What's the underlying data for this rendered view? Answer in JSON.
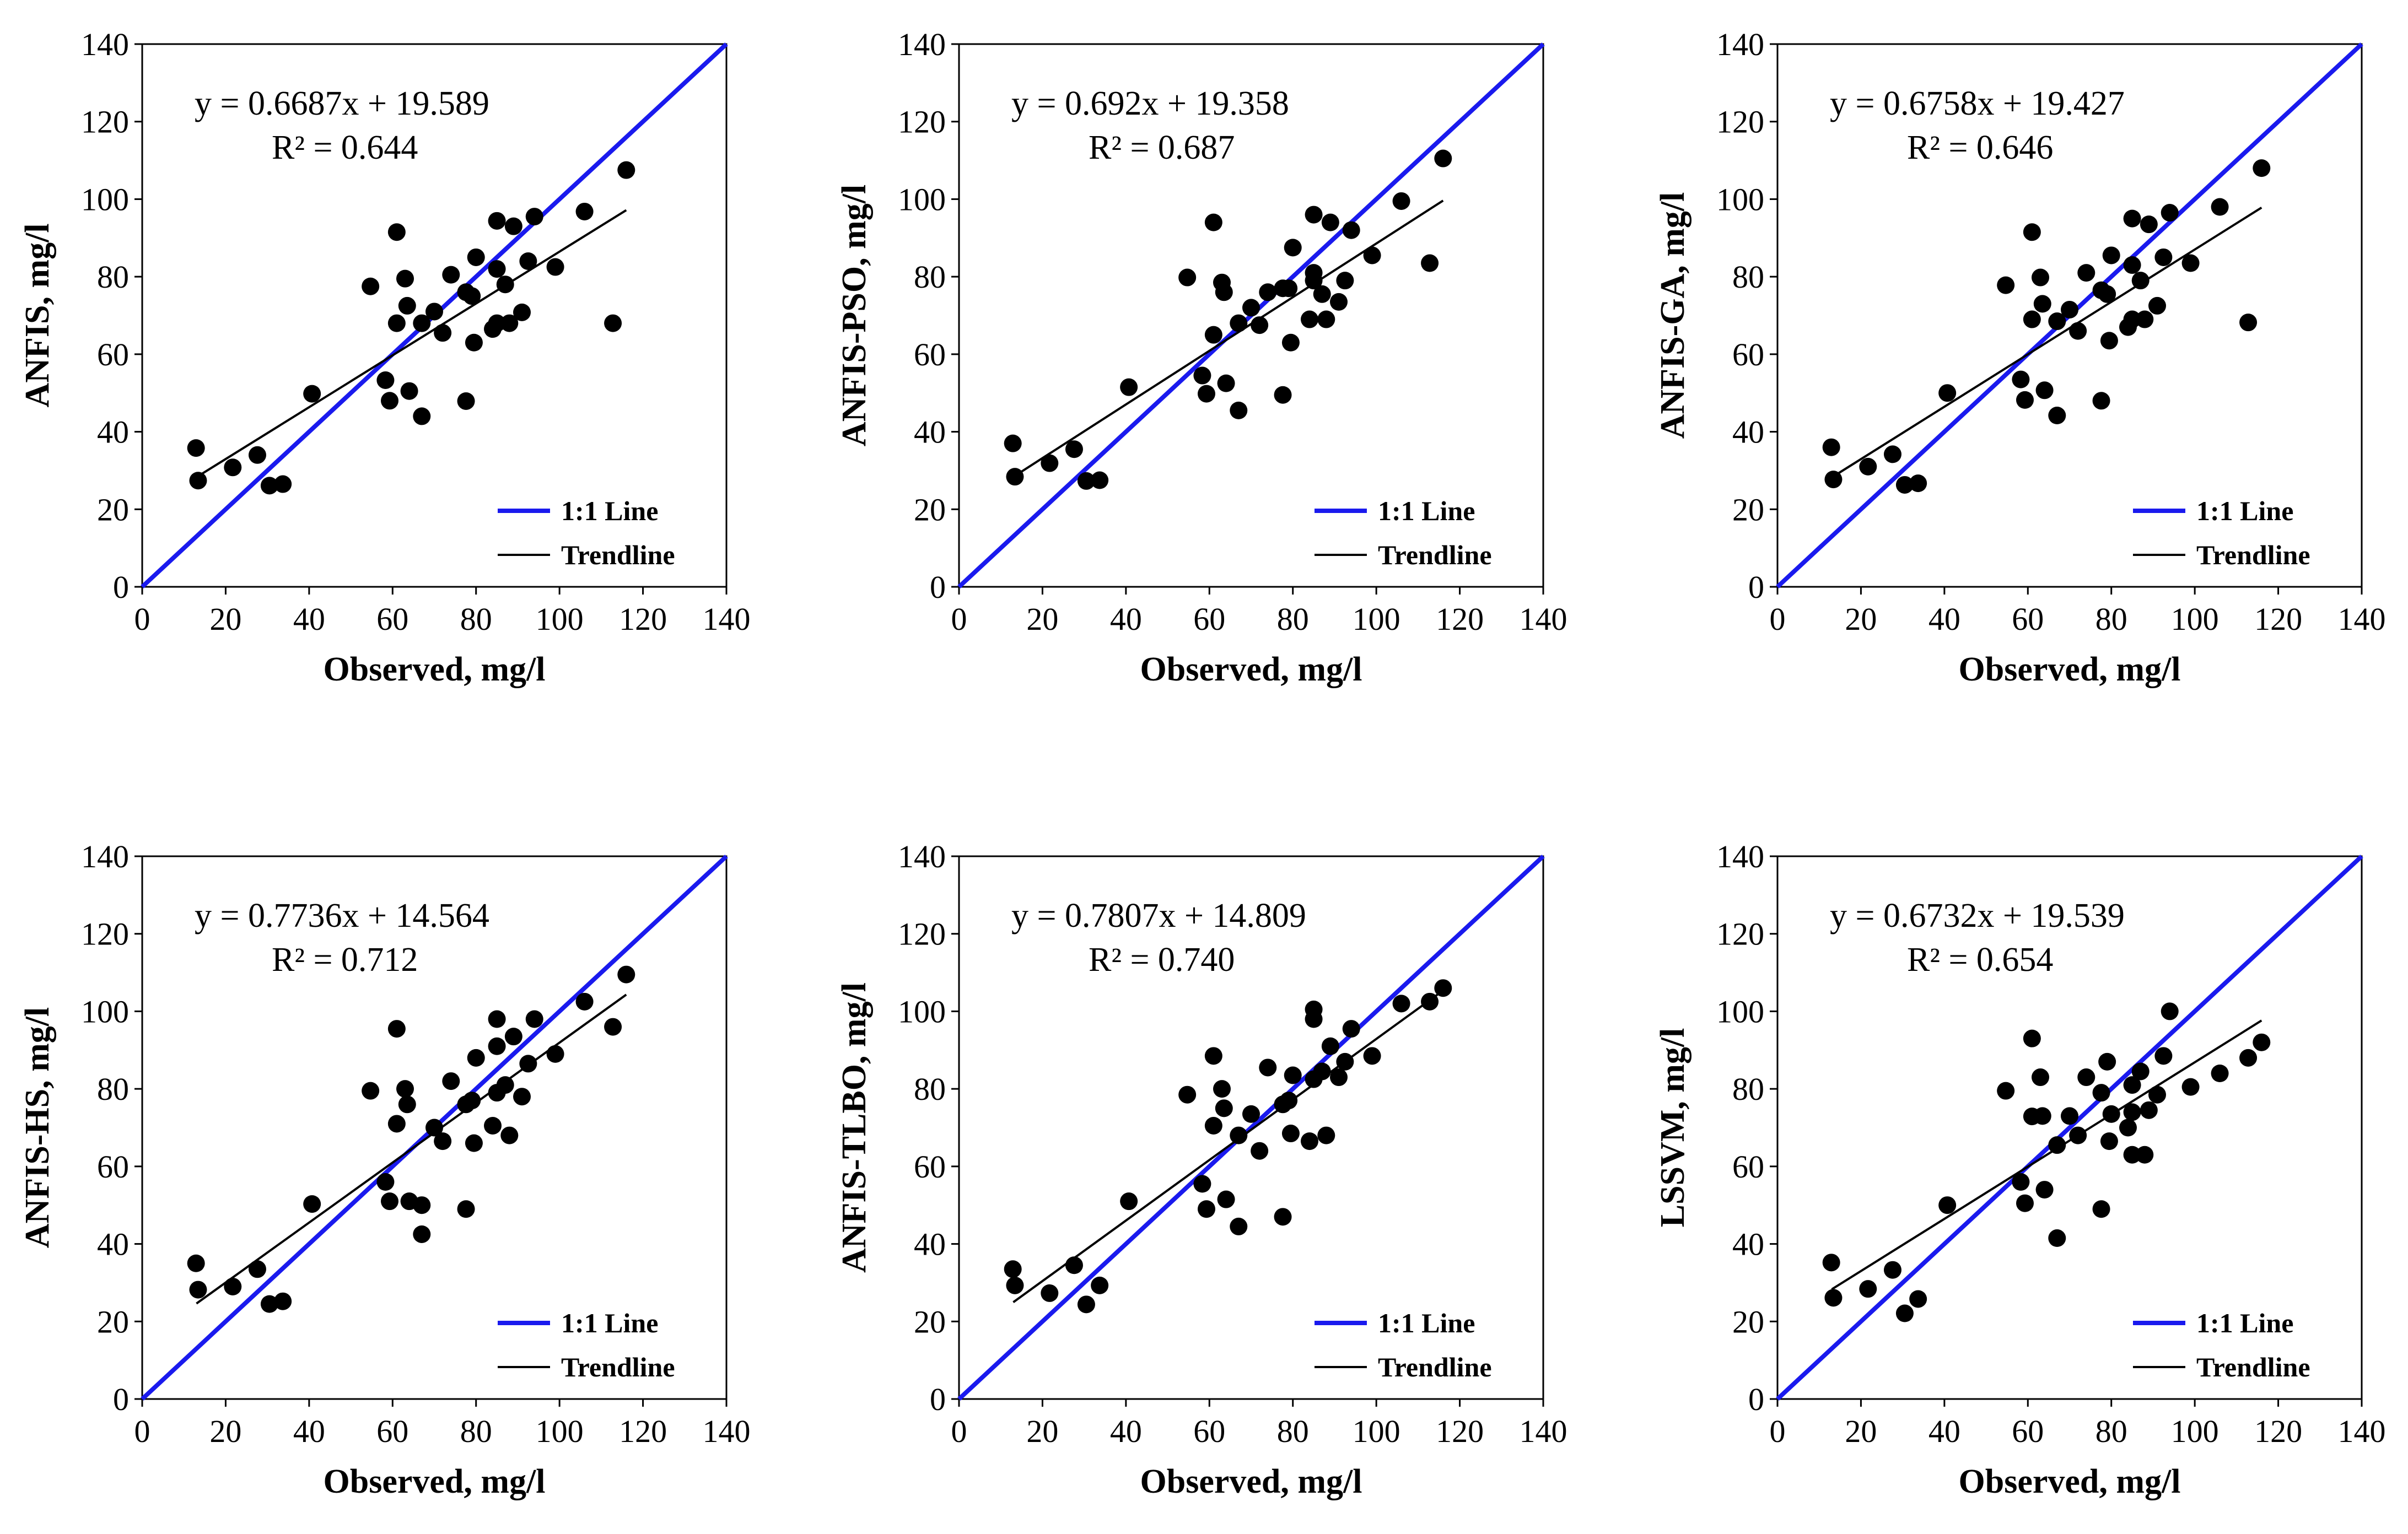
{
  "colors": {
    "one_to_one": "#1a1aee",
    "trend": "#000000",
    "point": "#000000",
    "axis": "#000000"
  },
  "chart_data": [
    {
      "type": "scatter",
      "xlabel": "Observed, mg/l",
      "ylabel": "ANFIS, mg/l",
      "xlim": [
        0,
        140
      ],
      "ylim": [
        0,
        140
      ],
      "xticks": [
        "0",
        "20",
        "40",
        "60",
        "80",
        "100",
        "120",
        "140"
      ],
      "yticks": [
        "0",
        "20",
        "40",
        "60",
        "80",
        "100",
        "120",
        "140"
      ],
      "equation": "y = 0.6687x + 19.589",
      "r2": "R² = 0.644",
      "slope": 0.6687,
      "intercept": 19.589,
      "trend_range": [
        13,
        116
      ],
      "legend": {
        "one_to_one": "1:1 Line",
        "trend": "Trendline"
      },
      "points": [
        [
          12.9,
          35.8
        ],
        [
          13.4,
          27.4
        ],
        [
          21.7,
          30.8
        ],
        [
          27.6,
          34.0
        ],
        [
          30.5,
          26.1
        ],
        [
          33.7,
          26.5
        ],
        [
          40.7,
          49.8
        ],
        [
          54.7,
          77.5
        ],
        [
          58.3,
          53.3
        ],
        [
          59.3,
          48.0
        ],
        [
          61.0,
          68.0
        ],
        [
          61.0,
          91.5
        ],
        [
          63.0,
          79.5
        ],
        [
          63.5,
          72.5
        ],
        [
          64.0,
          50.5
        ],
        [
          67.0,
          44.0
        ],
        [
          67.0,
          68.0
        ],
        [
          70.0,
          71.0
        ],
        [
          72.0,
          65.5
        ],
        [
          74.0,
          80.5
        ],
        [
          77.6,
          47.9
        ],
        [
          77.6,
          76.0
        ],
        [
          79.0,
          75.0
        ],
        [
          79.5,
          63.0
        ],
        [
          80.0,
          85.0
        ],
        [
          84.0,
          66.5
        ],
        [
          85.0,
          68.0
        ],
        [
          85.0,
          82.0
        ],
        [
          85.0,
          94.4
        ],
        [
          87.0,
          78.0
        ],
        [
          88.0,
          68.0
        ],
        [
          89.0,
          93.0
        ],
        [
          91.0,
          70.8
        ],
        [
          92.5,
          84.0
        ],
        [
          94.0,
          95.5
        ],
        [
          99.0,
          82.5
        ],
        [
          106.0,
          96.8
        ],
        [
          112.8,
          68.0
        ],
        [
          116.0,
          107.5
        ]
      ]
    },
    {
      "type": "scatter",
      "xlabel": "Observed, mg/l",
      "ylabel": "ANFIS-PSO, mg/l",
      "xlim": [
        0,
        140
      ],
      "ylim": [
        0,
        140
      ],
      "xticks": [
        "0",
        "20",
        "40",
        "60",
        "80",
        "100",
        "120",
        "140"
      ],
      "yticks": [
        "0",
        "20",
        "40",
        "60",
        "80",
        "100",
        "120",
        "140"
      ],
      "equation": "y = 0.692x + 19.358",
      "r2": "R² = 0.687",
      "slope": 0.692,
      "intercept": 19.358,
      "trend_range": [
        13,
        116
      ],
      "legend": {
        "one_to_one": "1:1 Line",
        "trend": "Trendline"
      },
      "points": [
        [
          12.9,
          37.0
        ],
        [
          13.4,
          28.4
        ],
        [
          21.7,
          31.9
        ],
        [
          27.6,
          35.5
        ],
        [
          30.5,
          27.3
        ],
        [
          33.7,
          27.5
        ],
        [
          40.7,
          51.5
        ],
        [
          54.7,
          79.8
        ],
        [
          58.3,
          54.5
        ],
        [
          59.3,
          49.8
        ],
        [
          61.0,
          65.0
        ],
        [
          61.0,
          94.0
        ],
        [
          63.0,
          78.5
        ],
        [
          63.5,
          76.0
        ],
        [
          64.0,
          52.5
        ],
        [
          67.0,
          45.5
        ],
        [
          67.0,
          68.0
        ],
        [
          70.0,
          72.0
        ],
        [
          72.0,
          67.5
        ],
        [
          74.0,
          76.0
        ],
        [
          77.6,
          49.5
        ],
        [
          77.6,
          77.0
        ],
        [
          79.0,
          77.0
        ],
        [
          79.5,
          63.0
        ],
        [
          80.0,
          87.5
        ],
        [
          84.0,
          69.0
        ],
        [
          85.0,
          79.0
        ],
        [
          85.0,
          81.0
        ],
        [
          85.0,
          96.0
        ],
        [
          87.0,
          75.5
        ],
        [
          88.0,
          69.0
        ],
        [
          89.0,
          94.0
        ],
        [
          91.0,
          73.5
        ],
        [
          92.5,
          79.0
        ],
        [
          94.0,
          92.0
        ],
        [
          99.0,
          85.5
        ],
        [
          106.0,
          99.5
        ],
        [
          112.8,
          83.5
        ],
        [
          116.0,
          110.5
        ]
      ]
    },
    {
      "type": "scatter",
      "xlabel": "Observed, mg/l",
      "ylabel": "ANFIS-GA, mg/l",
      "xlim": [
        0,
        140
      ],
      "ylim": [
        0,
        140
      ],
      "xticks": [
        "0",
        "20",
        "40",
        "60",
        "80",
        "100",
        "120",
        "140"
      ],
      "yticks": [
        "0",
        "20",
        "40",
        "60",
        "80",
        "100",
        "120",
        "140"
      ],
      "equation": "y = 0.6758x + 19.427",
      "r2": "R² = 0.646",
      "slope": 0.6758,
      "intercept": 19.427,
      "trend_range": [
        13,
        116
      ],
      "legend": {
        "one_to_one": "1:1 Line",
        "trend": "Trendline"
      },
      "points": [
        [
          12.9,
          36.0
        ],
        [
          13.4,
          27.7
        ],
        [
          21.7,
          31.0
        ],
        [
          27.6,
          34.2
        ],
        [
          30.5,
          26.3
        ],
        [
          33.7,
          26.7
        ],
        [
          40.7,
          50.0
        ],
        [
          54.7,
          77.8
        ],
        [
          58.3,
          53.5
        ],
        [
          59.3,
          48.2
        ],
        [
          61.0,
          69.0
        ],
        [
          61.0,
          91.5
        ],
        [
          63.0,
          79.8
        ],
        [
          63.5,
          73.0
        ],
        [
          64.0,
          50.7
        ],
        [
          67.0,
          44.2
        ],
        [
          67.0,
          68.5
        ],
        [
          70.0,
          71.5
        ],
        [
          72.0,
          66.0
        ],
        [
          74.0,
          81.0
        ],
        [
          77.6,
          48.0
        ],
        [
          77.6,
          76.5
        ],
        [
          79.0,
          75.5
        ],
        [
          79.5,
          63.5
        ],
        [
          80.0,
          85.5
        ],
        [
          84.0,
          67.0
        ],
        [
          85.0,
          69.0
        ],
        [
          85.0,
          83.0
        ],
        [
          85.0,
          95.0
        ],
        [
          87.0,
          79.0
        ],
        [
          88.0,
          69.0
        ],
        [
          89.0,
          93.5
        ],
        [
          91.0,
          72.5
        ],
        [
          92.5,
          85.0
        ],
        [
          94.0,
          96.5
        ],
        [
          99.0,
          83.5
        ],
        [
          106.0,
          98.0
        ],
        [
          112.8,
          68.2
        ],
        [
          116.0,
          108.0
        ]
      ]
    },
    {
      "type": "scatter",
      "xlabel": "Observed, mg/l",
      "ylabel": "ANFIS-HS, mg/l",
      "xlim": [
        0,
        140
      ],
      "ylim": [
        0,
        140
      ],
      "xticks": [
        "0",
        "20",
        "40",
        "60",
        "80",
        "100",
        "120",
        "140"
      ],
      "yticks": [
        "0",
        "20",
        "40",
        "60",
        "80",
        "100",
        "120",
        "140"
      ],
      "equation": "y = 0.7736x + 14.564",
      "r2": "R² = 0.712",
      "slope": 0.7736,
      "intercept": 14.564,
      "trend_range": [
        13,
        116
      ],
      "legend": {
        "one_to_one": "1:1 Line",
        "trend": "Trendline"
      },
      "points": [
        [
          12.9,
          35.0
        ],
        [
          13.4,
          28.2
        ],
        [
          21.7,
          29.0
        ],
        [
          27.6,
          33.5
        ],
        [
          30.5,
          24.5
        ],
        [
          33.7,
          25.2
        ],
        [
          40.7,
          50.3
        ],
        [
          54.7,
          79.5
        ],
        [
          58.3,
          56.0
        ],
        [
          59.3,
          51.0
        ],
        [
          61.0,
          71.0
        ],
        [
          61.0,
          95.5
        ],
        [
          63.0,
          80.0
        ],
        [
          63.5,
          76.0
        ],
        [
          64.0,
          51.0
        ],
        [
          67.0,
          42.5
        ],
        [
          67.0,
          50.0
        ],
        [
          70.0,
          70.0
        ],
        [
          72.0,
          66.5
        ],
        [
          74.0,
          82.0
        ],
        [
          77.6,
          49.0
        ],
        [
          77.6,
          76.0
        ],
        [
          79.0,
          77.0
        ],
        [
          79.5,
          66.0
        ],
        [
          80.0,
          88.0
        ],
        [
          84.0,
          70.5
        ],
        [
          85.0,
          79.0
        ],
        [
          85.0,
          91.0
        ],
        [
          85.0,
          98.0
        ],
        [
          87.0,
          81.0
        ],
        [
          88.0,
          68.0
        ],
        [
          89.0,
          93.5
        ],
        [
          91.0,
          78.0
        ],
        [
          92.5,
          86.5
        ],
        [
          94.0,
          98.0
        ],
        [
          99.0,
          89.0
        ],
        [
          106.0,
          102.5
        ],
        [
          112.8,
          96.0
        ],
        [
          116.0,
          109.5
        ]
      ]
    },
    {
      "type": "scatter",
      "xlabel": "Observed, mg/l",
      "ylabel": "ANFIS-TLBO, mg/l",
      "xlim": [
        0,
        140
      ],
      "ylim": [
        0,
        140
      ],
      "xticks": [
        "0",
        "20",
        "40",
        "60",
        "80",
        "100",
        "120",
        "140"
      ],
      "yticks": [
        "0",
        "20",
        "40",
        "60",
        "80",
        "100",
        "120",
        "140"
      ],
      "equation": "y = 0.7807x + 14.809",
      "r2": "R² = 0.740",
      "slope": 0.7807,
      "intercept": 14.809,
      "trend_range": [
        13,
        116
      ],
      "legend": {
        "one_to_one": "1:1 Line",
        "trend": "Trendline"
      },
      "points": [
        [
          12.9,
          33.5
        ],
        [
          13.4,
          29.3
        ],
        [
          21.7,
          27.3
        ],
        [
          27.6,
          34.5
        ],
        [
          30.5,
          24.4
        ],
        [
          33.7,
          29.3
        ],
        [
          40.7,
          51.0
        ],
        [
          54.7,
          78.5
        ],
        [
          58.3,
          55.5
        ],
        [
          59.3,
          49.0
        ],
        [
          61.0,
          70.5
        ],
        [
          61.0,
          88.5
        ],
        [
          63.0,
          80.0
        ],
        [
          63.5,
          75.0
        ],
        [
          64.0,
          51.5
        ],
        [
          67.0,
          44.5
        ],
        [
          67.0,
          68.0
        ],
        [
          70.0,
          73.5
        ],
        [
          72.0,
          64.0
        ],
        [
          74.0,
          85.5
        ],
        [
          77.6,
          47.0
        ],
        [
          77.6,
          76.0
        ],
        [
          79.0,
          77.0
        ],
        [
          79.5,
          68.5
        ],
        [
          80.0,
          83.5
        ],
        [
          84.0,
          66.5
        ],
        [
          85.0,
          82.5
        ],
        [
          85.0,
          98.0
        ],
        [
          85.0,
          100.5
        ],
        [
          87.0,
          84.5
        ],
        [
          88.0,
          68.0
        ],
        [
          89.0,
          91.0
        ],
        [
          91.0,
          83.0
        ],
        [
          92.5,
          87.0
        ],
        [
          94.0,
          95.5
        ],
        [
          99.0,
          88.5
        ],
        [
          106.0,
          102.0
        ],
        [
          112.8,
          102.5
        ],
        [
          116.0,
          106.0
        ]
      ]
    },
    {
      "type": "scatter",
      "xlabel": "Observed, mg/l",
      "ylabel": "LSSVM, mg/l",
      "xlim": [
        0,
        140
      ],
      "ylim": [
        0,
        140
      ],
      "xticks": [
        "0",
        "20",
        "40",
        "60",
        "80",
        "100",
        "120",
        "140"
      ],
      "yticks": [
        "0",
        "20",
        "40",
        "60",
        "80",
        "100",
        "120",
        "140"
      ],
      "equation": "y = 0.6732x + 19.539",
      "r2": "R² = 0.654",
      "slope": 0.6732,
      "intercept": 19.539,
      "trend_range": [
        13,
        116
      ],
      "legend": {
        "one_to_one": "1:1 Line",
        "trend": "Trendline"
      },
      "points": [
        [
          12.9,
          35.2
        ],
        [
          13.4,
          26.1
        ],
        [
          21.7,
          28.4
        ],
        [
          27.6,
          33.3
        ],
        [
          30.5,
          22.1
        ],
        [
          33.7,
          25.8
        ],
        [
          40.7,
          50.0
        ],
        [
          54.7,
          79.5
        ],
        [
          58.3,
          56.0
        ],
        [
          59.3,
          50.5
        ],
        [
          61.0,
          72.9
        ],
        [
          61.0,
          93.0
        ],
        [
          63.0,
          83.0
        ],
        [
          63.5,
          73.0
        ],
        [
          64.0,
          54.0
        ],
        [
          67.0,
          41.5
        ],
        [
          67.0,
          65.5
        ],
        [
          70.0,
          73.0
        ],
        [
          72.0,
          68.0
        ],
        [
          74.0,
          83.0
        ],
        [
          77.6,
          49.0
        ],
        [
          77.6,
          79.0
        ],
        [
          79.0,
          87.0
        ],
        [
          79.5,
          66.5
        ],
        [
          80.0,
          73.5
        ],
        [
          84.0,
          70.0
        ],
        [
          85.0,
          81.0
        ],
        [
          85.0,
          63.0
        ],
        [
          85.0,
          74.0
        ],
        [
          87.0,
          84.5
        ],
        [
          88.0,
          63.0
        ],
        [
          89.0,
          74.5
        ],
        [
          91.0,
          78.5
        ],
        [
          92.5,
          88.5
        ],
        [
          94.0,
          100.0
        ],
        [
          99.0,
          80.5
        ],
        [
          106.0,
          84.0
        ],
        [
          112.8,
          88.0
        ],
        [
          116.0,
          92.0
        ]
      ]
    }
  ]
}
